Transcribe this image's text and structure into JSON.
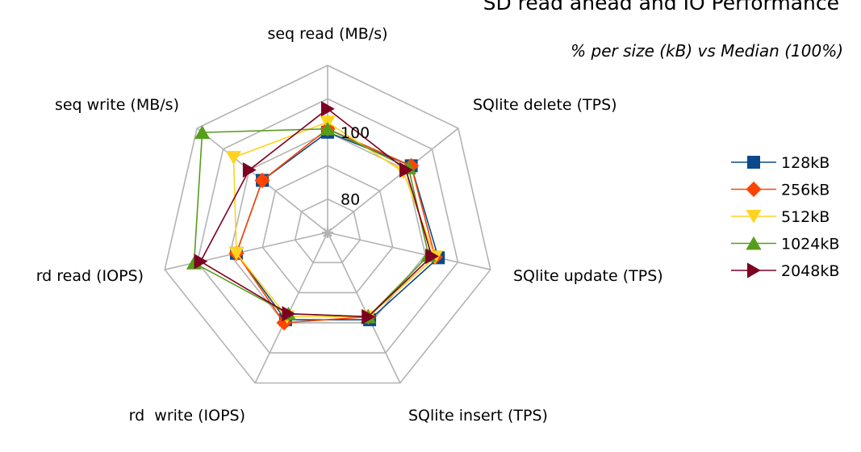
{
  "chart_data": {
    "type": "radar",
    "title": "SD read ahead and IO Performance",
    "subtitle": "% per size (kB) vs Median (100%)",
    "axes": [
      "seq read (MB/s)",
      "SQlite delete (TPS)",
      "SQlite update (TPS)",
      "SQlite insert (TPS)",
      "rd  write (IOPS)",
      "rd read (IOPS)",
      "seq write (MB/s)"
    ],
    "r_range": [
      70,
      120
    ],
    "ticks": [
      {
        "value": 80,
        "label": "80"
      },
      {
        "value": 100,
        "label": "100"
      }
    ],
    "grid": true,
    "legend_position": "right",
    "series": [
      {
        "name": "128kB",
        "color": "#0b4a8a",
        "marker": "square",
        "values": [
          100,
          102,
          104,
          99,
          99,
          98,
          95
        ]
      },
      {
        "name": "256kB",
        "color": "#ff4500",
        "marker": "diamond",
        "values": [
          101,
          102,
          103,
          98,
          100,
          98,
          95
        ]
      },
      {
        "name": "512kB",
        "color": "#ffd320",
        "marker": "triangle-down",
        "values": [
          103,
          99,
          103,
          98,
          98,
          98,
          106
        ]
      },
      {
        "name": "1024kB",
        "color": "#579d1c",
        "marker": "triangle-up",
        "values": [
          101,
          101,
          101,
          98,
          97,
          111,
          118
        ]
      },
      {
        "name": "2048kB",
        "color": "#7e0021",
        "marker": "triangle-right",
        "values": [
          107,
          100,
          102,
          98,
          97,
          109,
          100
        ]
      }
    ]
  }
}
